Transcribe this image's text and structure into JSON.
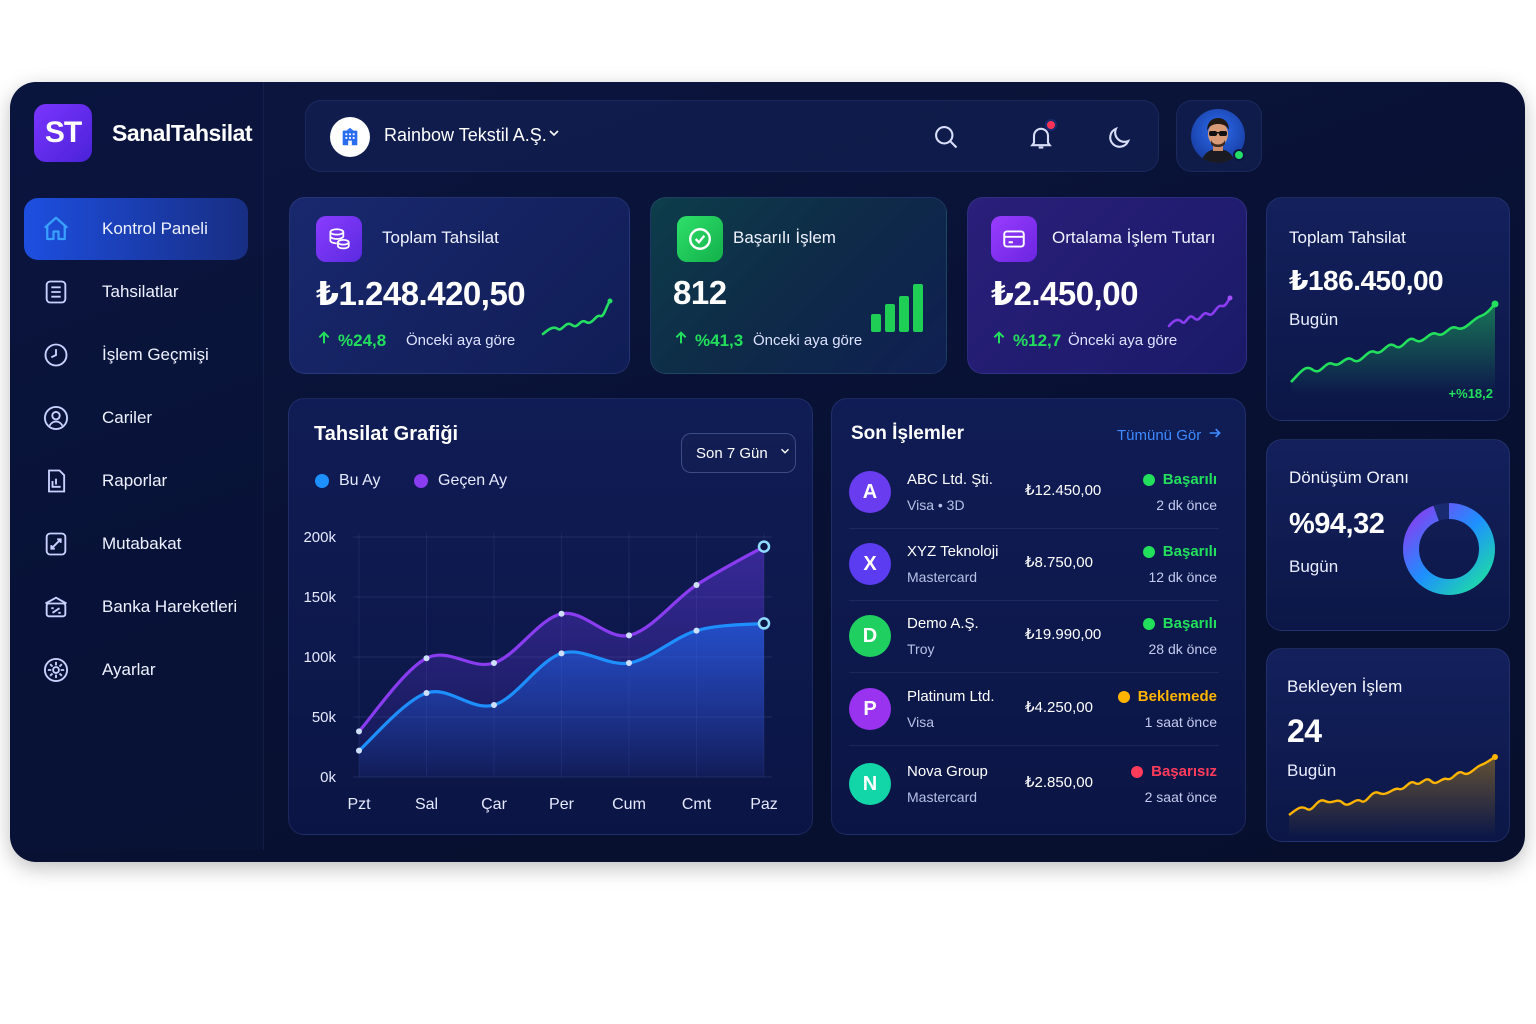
{
  "brand": {
    "logo_text": "ST",
    "name": "SanalTahsilat"
  },
  "sidebar": {
    "items": [
      {
        "label": "Kontrol Paneli",
        "icon": "home-icon",
        "active": true
      },
      {
        "label": "Tahsilatlar",
        "icon": "list-icon"
      },
      {
        "label": "İşlem Geçmişi",
        "icon": "history-icon"
      },
      {
        "label": "Cariler",
        "icon": "user-icon"
      },
      {
        "label": "Raporlar",
        "icon": "report-icon"
      },
      {
        "label": "Mutabakat",
        "icon": "reconcile-icon"
      },
      {
        "label": "Banka Hareketleri",
        "icon": "bank-icon"
      },
      {
        "label": "Ayarlar",
        "icon": "settings-icon"
      }
    ]
  },
  "topbar": {
    "company": "Rainbow Tekstil A.Ş."
  },
  "stats": [
    {
      "title": "Toplam Tahsilat",
      "value": "₺1.248.420,50",
      "change": "%24,8",
      "note": "Önceki aya göre",
      "icon": "coins-icon"
    },
    {
      "title": "Başarılı İşlem",
      "value": "812",
      "change": "%41,3",
      "note": "Önceki aya göre",
      "icon": "check-circle-icon"
    },
    {
      "title": "Ortalama İşlem Tutarı",
      "value": "₺2.450,00",
      "change": "%12,7",
      "note": "Önceki aya göre",
      "icon": "card-icon"
    }
  ],
  "right": {
    "daily": {
      "title": "Toplam Tahsilat",
      "value": "₺186.450,00",
      "sub": "Bugün",
      "change": "+%18,2"
    },
    "conversion": {
      "title": "Dönüşüm Oranı",
      "value": "%94,32",
      "sub": "Bugün",
      "percent": 94.32
    },
    "pending": {
      "title": "Bekleyen İşlem",
      "value": "24",
      "sub": "Bugün"
    }
  },
  "chart_panel": {
    "title": "Tahsilat Grafiği",
    "range": "Son 7 Gün",
    "legend": [
      "Bu Ay",
      "Geçen Ay"
    ]
  },
  "chart_data": {
    "type": "area",
    "categories": [
      "Pzt",
      "Sal",
      "Çar",
      "Per",
      "Cum",
      "Cmt",
      "Paz"
    ],
    "series": [
      {
        "name": "Bu Ay",
        "color": "#1e8fff",
        "values": [
          22,
          70,
          60,
          103,
          95,
          122,
          128
        ]
      },
      {
        "name": "Geçen Ay",
        "color": "#8a3cf0",
        "values": [
          38,
          99,
          95,
          136,
          118,
          160,
          192
        ]
      }
    ],
    "ylim": [
      0,
      200
    ],
    "yticks": [
      "0k",
      "50k",
      "100k",
      "150k",
      "200k"
    ]
  },
  "transactions": {
    "title": "Son İşlemler",
    "view_all": "Tümünü Gör",
    "rows": [
      {
        "initial": "A",
        "name": "ABC Ltd. Şti.",
        "meta": "Visa • 3D",
        "amount": "₺12.450,00",
        "status": "Başarılı",
        "status_color": "#22e05c",
        "time": "2 dk önce",
        "color": "#6a3cf0"
      },
      {
        "initial": "X",
        "name": "XYZ Teknoloji",
        "meta": "Mastercard",
        "amount": "₺8.750,00",
        "status": "Başarılı",
        "status_color": "#22e05c",
        "time": "12 dk önce",
        "color": "#5b3cf0"
      },
      {
        "initial": "D",
        "name": "Demo A.Ş.",
        "meta": "Troy",
        "amount": "₺19.990,00",
        "status": "Başarılı",
        "status_color": "#22e05c",
        "time": "28 dk önce",
        "color": "#1fcf60"
      },
      {
        "initial": "P",
        "name": "Platinum Ltd.",
        "meta": "Visa",
        "amount": "₺4.250,00",
        "status": "Beklemede",
        "status_color": "#ffb400",
        "time": "1 saat önce",
        "color": "#9a33f0"
      },
      {
        "initial": "N",
        "name": "Nova Group",
        "meta": "Mastercard",
        "amount": "₺2.850,00",
        "status": "Başarısız",
        "status_color": "#ff3b5c",
        "time": "2 saat önce",
        "color": "#12d6a8"
      }
    ]
  }
}
